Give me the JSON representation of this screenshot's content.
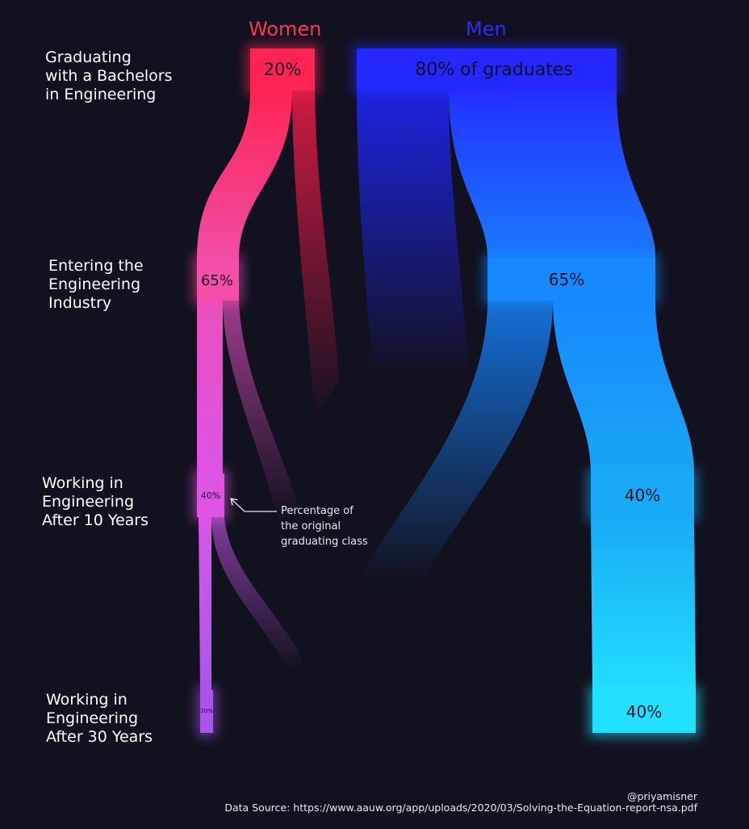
{
  "columns": {
    "women": {
      "label": "Women",
      "color": "#ff3355"
    },
    "men": {
      "label": "Men",
      "color": "#2a2aff"
    }
  },
  "stages": [
    {
      "label": "Graduating\nwith a Bachelors\nin Engineering"
    },
    {
      "label": "Entering the\nEngineering\nIndustry"
    },
    {
      "label": "Working in\nEngineering\nAfter 10 Years"
    },
    {
      "label": "Working in\nEngineering\nAfter 30 Years"
    }
  ],
  "women_nodes": [
    {
      "label": "20%",
      "value": 20
    },
    {
      "label": "65%",
      "value": 65
    },
    {
      "label": "40%",
      "value": 40
    },
    {
      "label": "20%",
      "value": 20
    }
  ],
  "men_nodes": [
    {
      "label": "80% of graduates",
      "value": 80
    },
    {
      "label": "65%",
      "value": 65
    },
    {
      "label": "40%",
      "value": 40
    },
    {
      "label": "40%",
      "value": 40
    }
  ],
  "annotation": "Percentage of\n the original\ngraduating class",
  "footer": {
    "credit": "@priyamisner",
    "source": "Data Source: https://www.aauw.org/app/uploads/2020/03/Solving-the-Equation-report-nsa.pdf"
  },
  "colors": {
    "women_stages": [
      "#ff2453",
      "#f34ea8",
      "#df55e3",
      "#a855ea"
    ],
    "men_stages": [
      "#2428ff",
      "#1888ff",
      "#1aaaf5",
      "#22e0ff"
    ]
  }
}
